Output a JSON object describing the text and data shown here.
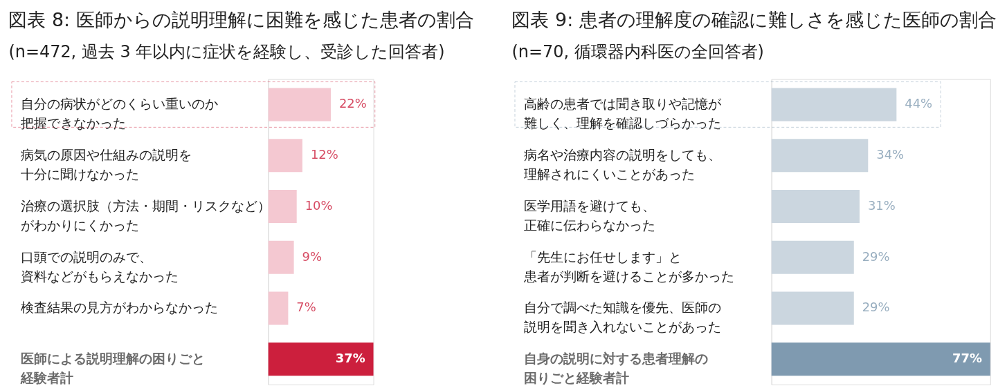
{
  "chart_data": [
    {
      "type": "bar",
      "orientation": "horizontal",
      "title": "図表 8: 医師からの説明理解に困難を感じた患者の割合",
      "subtitle": "(n=472, 過去 3 年以内に症状を経験し、受診した回答者)",
      "categories": [
        "自分の病状がどのくらい重いのか把握できなかった",
        "病気の原因や仕組みの説明を十分に聞けなかった",
        "治療の選択肢（方法・期間・リスクなど）がわかりにくかった",
        "口頭での説明のみで、資料などがもらえなかった",
        "検査結果の見方がわからなかった",
        "医師による説明理解の困りごと経験者計"
      ],
      "values": [
        22,
        12,
        10,
        9,
        7,
        37
      ],
      "colors": [
        "#f4c8d1",
        "#f4c8d1",
        "#f4c8d1",
        "#f4c8d1",
        "#f4c8d1",
        "#cc1f3d"
      ],
      "value_labels": [
        "22%",
        "12%",
        "10%",
        "9%",
        "7%",
        "37%"
      ]
    },
    {
      "type": "bar",
      "orientation": "horizontal",
      "title": "図表 9: 患者の理解度の確認に難しさを感じた医師の割合",
      "subtitle": "(n=70, 循環器内科医の全回答者)",
      "categories": [
        "高齢の患者では聞き取りや記憶が難しく、理解を確認しづらかった",
        "病名や治療内容の説明をしても、理解されにくいことがあった",
        "医学用語を避けても、正確に伝わらなかった",
        "「先生にお任せします」と患者が判断を避けることが多かった",
        "自分で調べた知識を優先、医師の説明を聞き入れないことがあった",
        "自身の説明に対する患者理解の困りごと経験者計"
      ],
      "values": [
        44,
        34,
        31,
        29,
        29,
        77
      ],
      "colors": [
        "#cbd6df",
        "#cbd6df",
        "#cbd6df",
        "#cbd6df",
        "#cbd6df",
        "#7f9ab0"
      ],
      "value_labels": [
        "44%",
        "34%",
        "31%",
        "29%",
        "29%",
        "77%"
      ]
    }
  ]
}
